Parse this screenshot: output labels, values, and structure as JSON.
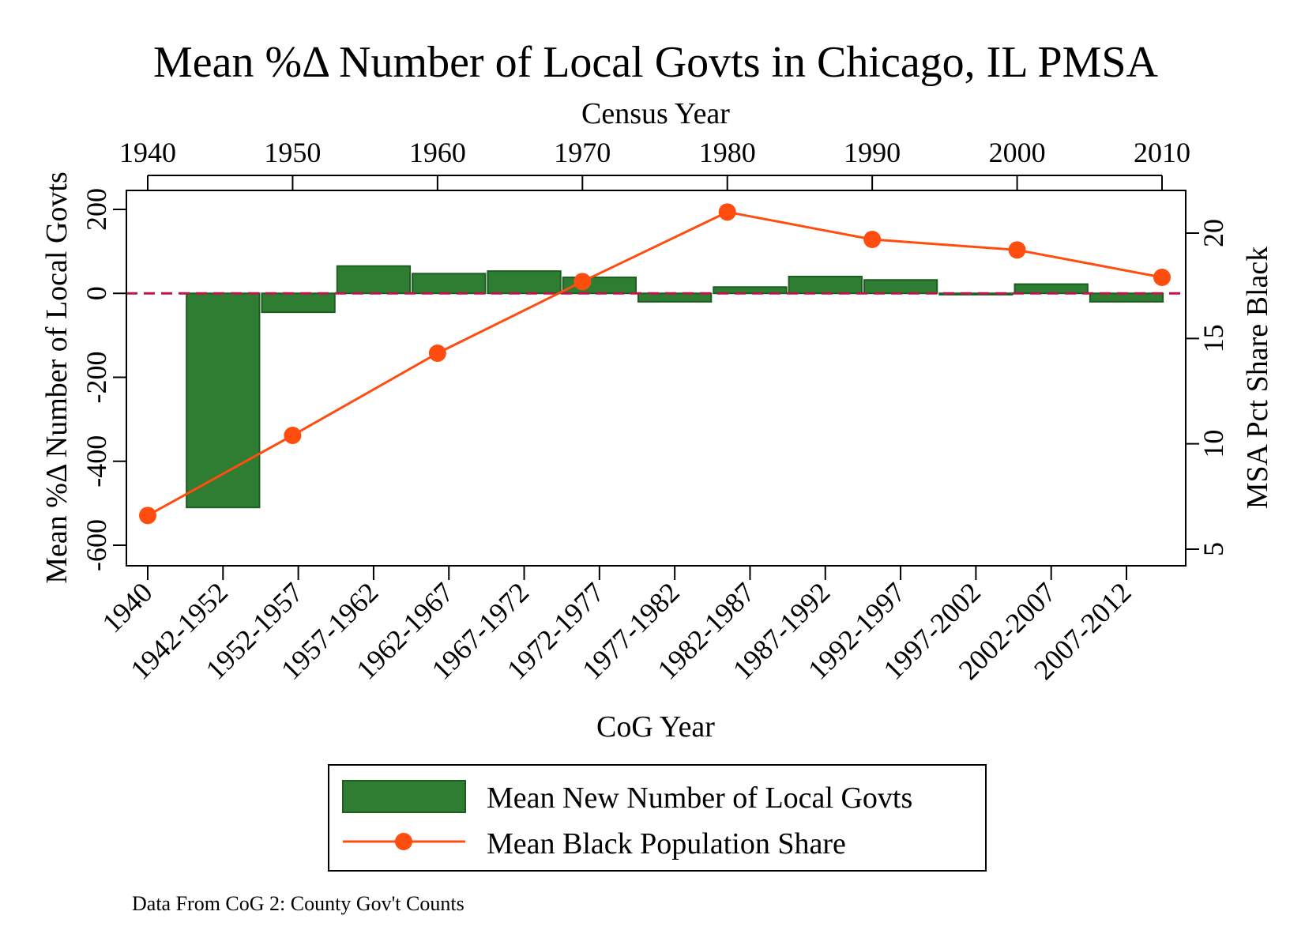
{
  "chart_data": {
    "type": "bar",
    "title": "Mean %Δ Number of Local Govts in Chicago, IL PMSA",
    "top_axis": {
      "label": "Census Year",
      "ticks": [
        "1940",
        "1950",
        "1960",
        "1970",
        "1980",
        "1990",
        "2000",
        "2010"
      ],
      "range": [
        1940,
        2010
      ]
    },
    "xlabel": "CoG Year",
    "categories": [
      "1940",
      "1942-1952",
      "1952-1957",
      "1957-1962",
      "1962-1967",
      "1967-1972",
      "1972-1977",
      "1977-1982",
      "1982-1987",
      "1987-1992",
      "1992-1997",
      "1997-2002",
      "2002-2007",
      "2007-2012"
    ],
    "ylabel_left": "Mean %Δ Number of Local Govts",
    "ylim_left": [
      -645,
      250
    ],
    "yticks_left": [
      200,
      0,
      -200,
      -400,
      -600
    ],
    "ylabel_right": "MSA Pct Share Black",
    "ylim_right": [
      4,
      22
    ],
    "yticks_right": [
      20,
      15,
      10,
      5
    ],
    "reference_line": {
      "y": 0,
      "style": "dashed",
      "color": "#c0144c"
    },
    "series": [
      {
        "name": "Mean New Number of Local Govts",
        "kind": "bar",
        "axis": "left",
        "color": "#2e7d32",
        "edge_color": "#1b5e20",
        "values": [
          null,
          -510,
          -45,
          65,
          47,
          53,
          38,
          -20,
          15,
          40,
          32,
          -3,
          22,
          -20
        ]
      },
      {
        "name": "Mean Black Population Share",
        "kind": "line",
        "axis": "right",
        "color": "#ff4d10",
        "x": [
          1940,
          1950,
          1960,
          1970,
          1980,
          1990,
          2000,
          2010
        ],
        "values": [
          6.6,
          10.4,
          14.3,
          17.7,
          21.0,
          19.7,
          19.2,
          17.9
        ]
      }
    ],
    "legend": {
      "placement": "bottom"
    },
    "grid": false,
    "note": "Data From CoG 2: County Gov't Counts"
  }
}
